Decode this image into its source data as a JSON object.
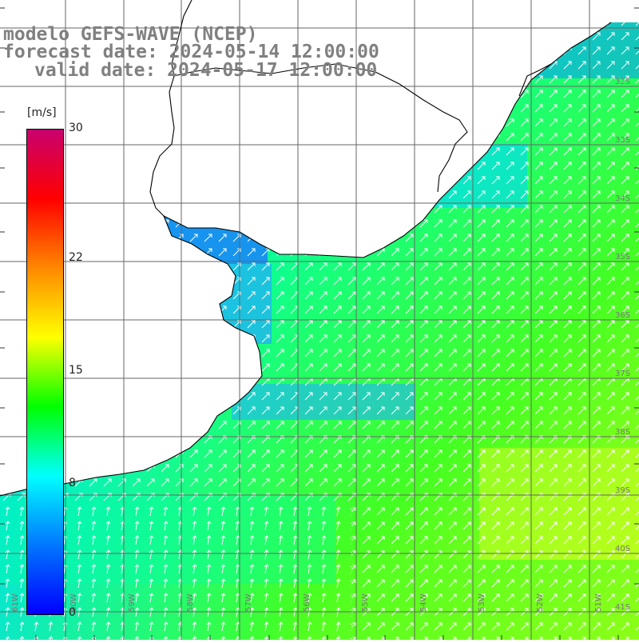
{
  "header": {
    "line1": "modelo GEFS-WAVE (NCEP)",
    "line2": "forecast date: 2024-05-14 12:00:00",
    "line3": "valid date: 2024-05-17 12:00:00"
  },
  "colorbar": {
    "unit": "[m/s]",
    "min": 0,
    "max": 30,
    "tick_labels": [
      {
        "value": 30,
        "label": "30"
      },
      {
        "value": 22,
        "label": "22"
      },
      {
        "value": 15,
        "label": "15"
      },
      {
        "value": 8,
        "label": "8"
      },
      {
        "value": 0,
        "label": "0"
      }
    ],
    "gradient_colors": [
      "#0000ff",
      "#0077ff",
      "#00ffff",
      "#00ff00",
      "#ffff00",
      "#ff8800",
      "#ff0000",
      "#c8006e"
    ]
  },
  "map": {
    "lat_labels": [
      "32S",
      "33S",
      "34S",
      "35S",
      "36S",
      "37S",
      "38S",
      "39S",
      "40S",
      "41S"
    ],
    "lon_labels": [
      "61W",
      "60W",
      "59W",
      "58W",
      "57W",
      "56W",
      "55W",
      "54W",
      "53W",
      "52W",
      "51W"
    ],
    "grid_lines": true,
    "wind_vectors": "arrows pointing northeast",
    "land_color": "#ffffff",
    "coastline_color": "#000000"
  }
}
